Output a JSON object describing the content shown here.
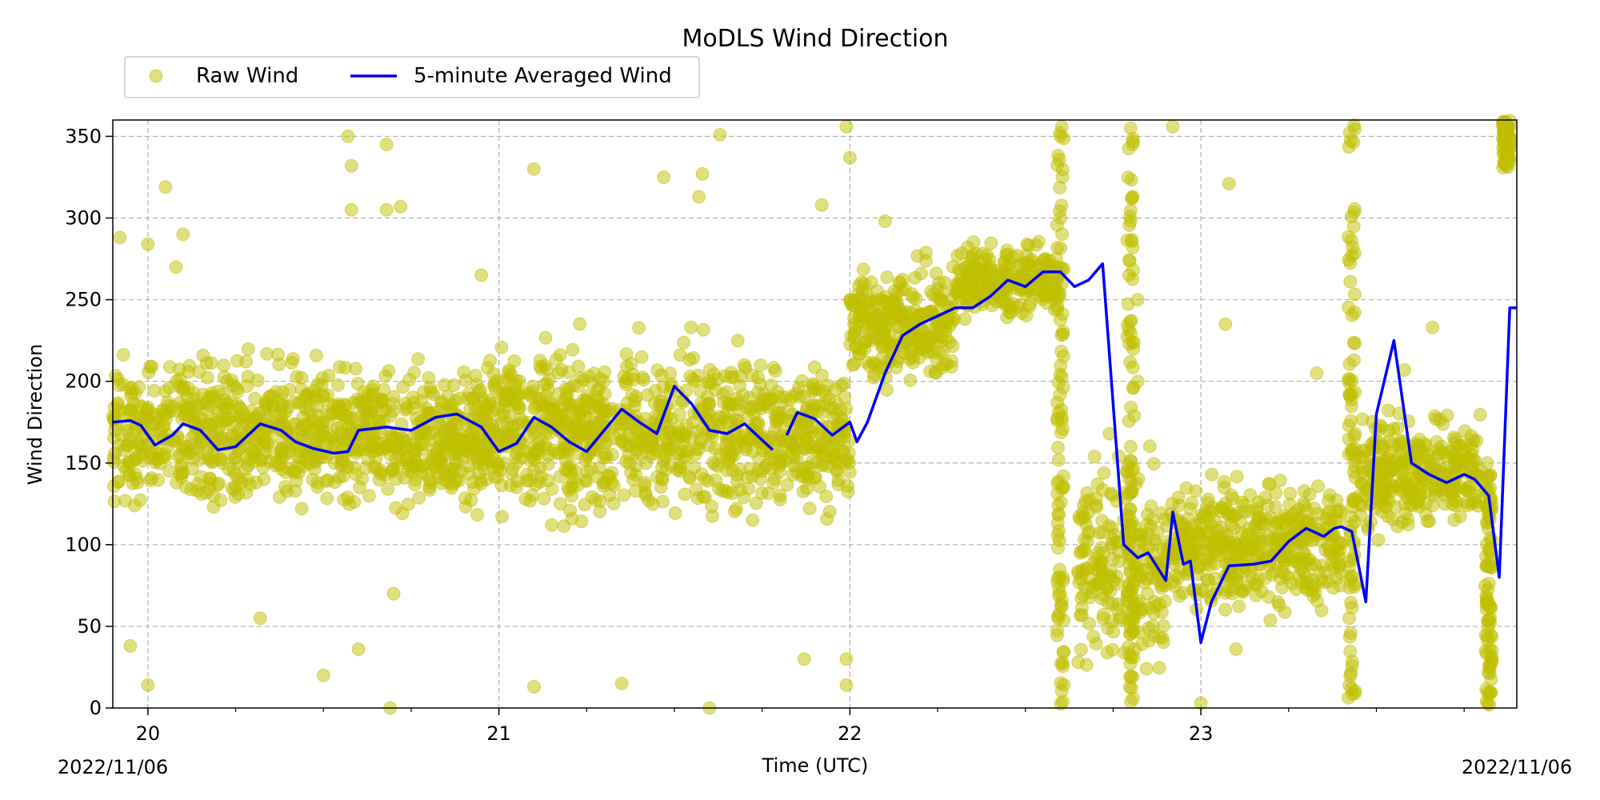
{
  "chart_data": {
    "type": "scatter",
    "title": "MoDLS Wind Direction",
    "xlabel": "Time (UTC)",
    "ylabel": "Wind Direction",
    "x_unit": "hour of day (UTC), 2022/11/06",
    "xlim": [
      19.9,
      23.9
    ],
    "ylim": [
      0,
      360
    ],
    "x_ticks": [
      20,
      21,
      22,
      23
    ],
    "x_tick_labels": [
      "20",
      "21",
      "22",
      "23"
    ],
    "x_minor_ticks": [
      20.25,
      20.5,
      20.75,
      21.25,
      21.5,
      21.75,
      22.25,
      22.5,
      22.75,
      23.25,
      23.5,
      23.75
    ],
    "y_ticks": [
      0,
      50,
      100,
      150,
      200,
      250,
      300,
      350
    ],
    "x_corner_labels": {
      "left": "2022/11/06",
      "right": "2022/11/06"
    },
    "grid": true,
    "legend": {
      "placement": "top-left, above axes",
      "ncol": 2
    },
    "colors": {
      "raw": "#bfbf00",
      "avg": "#0000ff",
      "grid": "#b0b0b0"
    },
    "series": [
      {
        "name": "Raw Wind",
        "kind": "scatter",
        "color": "#bfbf00",
        "bands": [
          {
            "x0": 19.9,
            "x1": 21.0,
            "center": 168,
            "spread": 28
          },
          {
            "x0": 21.0,
            "x1": 21.8,
            "center": 170,
            "spread": 32
          },
          {
            "x0": 21.8,
            "x1": 22.0,
            "center": 165,
            "spread": 28
          },
          {
            "x0": 22.0,
            "x1": 22.3,
            "center": 235,
            "spread": 22
          },
          {
            "x0": 22.3,
            "x1": 22.6,
            "center": 262,
            "spread": 15
          },
          {
            "x0": 22.65,
            "x1": 22.9,
            "center": 85,
            "spread": 40
          },
          {
            "x0": 22.9,
            "x1": 23.4,
            "center": 100,
            "spread": 25
          },
          {
            "x0": 23.45,
            "x1": 23.8,
            "center": 145,
            "spread": 22
          }
        ],
        "outliers": [
          [
            19.92,
            288
          ],
          [
            19.95,
            38
          ],
          [
            20.0,
            14
          ],
          [
            20.0,
            284
          ],
          [
            20.05,
            319
          ],
          [
            20.08,
            270
          ],
          [
            20.1,
            290
          ],
          [
            20.32,
            55
          ],
          [
            20.5,
            20
          ],
          [
            20.57,
            350
          ],
          [
            20.58,
            332
          ],
          [
            20.58,
            305
          ],
          [
            20.6,
            36
          ],
          [
            20.68,
            345
          ],
          [
            20.68,
            305
          ],
          [
            20.72,
            307
          ],
          [
            20.69,
            0
          ],
          [
            20.7,
            70
          ],
          [
            20.95,
            265
          ],
          [
            21.1,
            330
          ],
          [
            21.1,
            13
          ],
          [
            21.35,
            15
          ],
          [
            21.47,
            325
          ],
          [
            21.57,
            313
          ],
          [
            21.58,
            327
          ],
          [
            21.6,
            0
          ],
          [
            21.63,
            351
          ],
          [
            21.92,
            308
          ],
          [
            21.87,
            30
          ],
          [
            21.99,
            356
          ],
          [
            22.0,
            337
          ],
          [
            21.99,
            30
          ],
          [
            21.99,
            14
          ],
          [
            22.1,
            298
          ],
          [
            22.35,
            275
          ],
          [
            22.6,
            350
          ],
          [
            22.6,
            300
          ],
          [
            22.8,
            355
          ],
          [
            22.8,
            160
          ],
          [
            22.82,
            250
          ],
          [
            22.82,
            200
          ],
          [
            22.92,
            356
          ],
          [
            23.08,
            321
          ],
          [
            23.07,
            235
          ],
          [
            23.0,
            3
          ],
          [
            23.33,
            205
          ],
          [
            23.58,
            207
          ],
          [
            23.66,
            233
          ],
          [
            23.1,
            36
          ]
        ],
        "vertical_streaks": [
          {
            "x": 22.6,
            "y0": 0,
            "y1": 360
          },
          {
            "x": 22.8,
            "y0": 0,
            "y1": 360
          },
          {
            "x": 23.43,
            "y0": 0,
            "y1": 360
          },
          {
            "x": 23.82,
            "y0": 0,
            "y1": 150
          },
          {
            "x": 23.87,
            "y0": 330,
            "y1": 360
          }
        ]
      },
      {
        "name": "5-minute Averaged Wind",
        "kind": "line",
        "color": "#0000ff",
        "points": [
          [
            19.9,
            175
          ],
          [
            19.95,
            176
          ],
          [
            19.98,
            173
          ],
          [
            20.02,
            161
          ],
          [
            20.07,
            167
          ],
          [
            20.1,
            174
          ],
          [
            20.15,
            170
          ],
          [
            20.2,
            158
          ],
          [
            20.25,
            160
          ],
          [
            20.32,
            174
          ],
          [
            20.38,
            170
          ],
          [
            20.42,
            163
          ],
          [
            20.47,
            159
          ],
          [
            20.53,
            156
          ],
          [
            20.57,
            157
          ],
          [
            20.6,
            170
          ],
          [
            20.68,
            172
          ],
          [
            20.75,
            170
          ],
          [
            20.82,
            178
          ],
          [
            20.88,
            180
          ],
          [
            20.95,
            172
          ],
          [
            21.0,
            157
          ],
          [
            21.05,
            162
          ],
          [
            21.1,
            178
          ],
          [
            21.15,
            172
          ],
          [
            21.2,
            163
          ],
          [
            21.25,
            157
          ],
          [
            21.3,
            170
          ],
          [
            21.35,
            183
          ],
          [
            21.4,
            175
          ],
          [
            21.45,
            168
          ],
          [
            21.5,
            197
          ],
          [
            21.55,
            186
          ],
          [
            21.6,
            170
          ],
          [
            21.65,
            168
          ],
          [
            21.7,
            174
          ],
          [
            21.78,
            158
          ],
          null,
          [
            21.82,
            167
          ],
          [
            21.85,
            181
          ],
          [
            21.9,
            177
          ],
          [
            21.95,
            167
          ],
          [
            22.0,
            175
          ],
          [
            22.02,
            163
          ],
          [
            22.05,
            175
          ],
          [
            22.1,
            205
          ],
          [
            22.15,
            228
          ],
          [
            22.2,
            235
          ],
          [
            22.25,
            240
          ],
          [
            22.3,
            245
          ],
          [
            22.35,
            245
          ],
          [
            22.4,
            252
          ],
          [
            22.45,
            262
          ],
          [
            22.5,
            258
          ],
          [
            22.55,
            267
          ],
          [
            22.6,
            267
          ],
          [
            22.64,
            258
          ],
          [
            22.68,
            262
          ],
          [
            22.72,
            272
          ],
          [
            22.78,
            100
          ],
          [
            22.82,
            92
          ],
          [
            22.85,
            95
          ],
          [
            22.9,
            78
          ],
          [
            22.92,
            120
          ],
          [
            22.95,
            88
          ],
          [
            22.97,
            90
          ],
          [
            23.0,
            40
          ],
          [
            23.03,
            65
          ],
          [
            23.08,
            87
          ],
          [
            23.15,
            88
          ],
          [
            23.2,
            90
          ],
          [
            23.25,
            102
          ],
          [
            23.3,
            110
          ],
          [
            23.35,
            105
          ],
          [
            23.38,
            110
          ],
          [
            23.4,
            111
          ],
          [
            23.43,
            108
          ],
          [
            23.47,
            65
          ],
          [
            23.5,
            180
          ],
          [
            23.55,
            225
          ],
          [
            23.6,
            150
          ],
          [
            23.65,
            143
          ],
          [
            23.7,
            138
          ],
          [
            23.75,
            143
          ],
          [
            23.78,
            140
          ],
          [
            23.82,
            130
          ],
          [
            23.85,
            80
          ],
          [
            23.88,
            245
          ],
          [
            23.9,
            245
          ]
        ]
      }
    ]
  }
}
